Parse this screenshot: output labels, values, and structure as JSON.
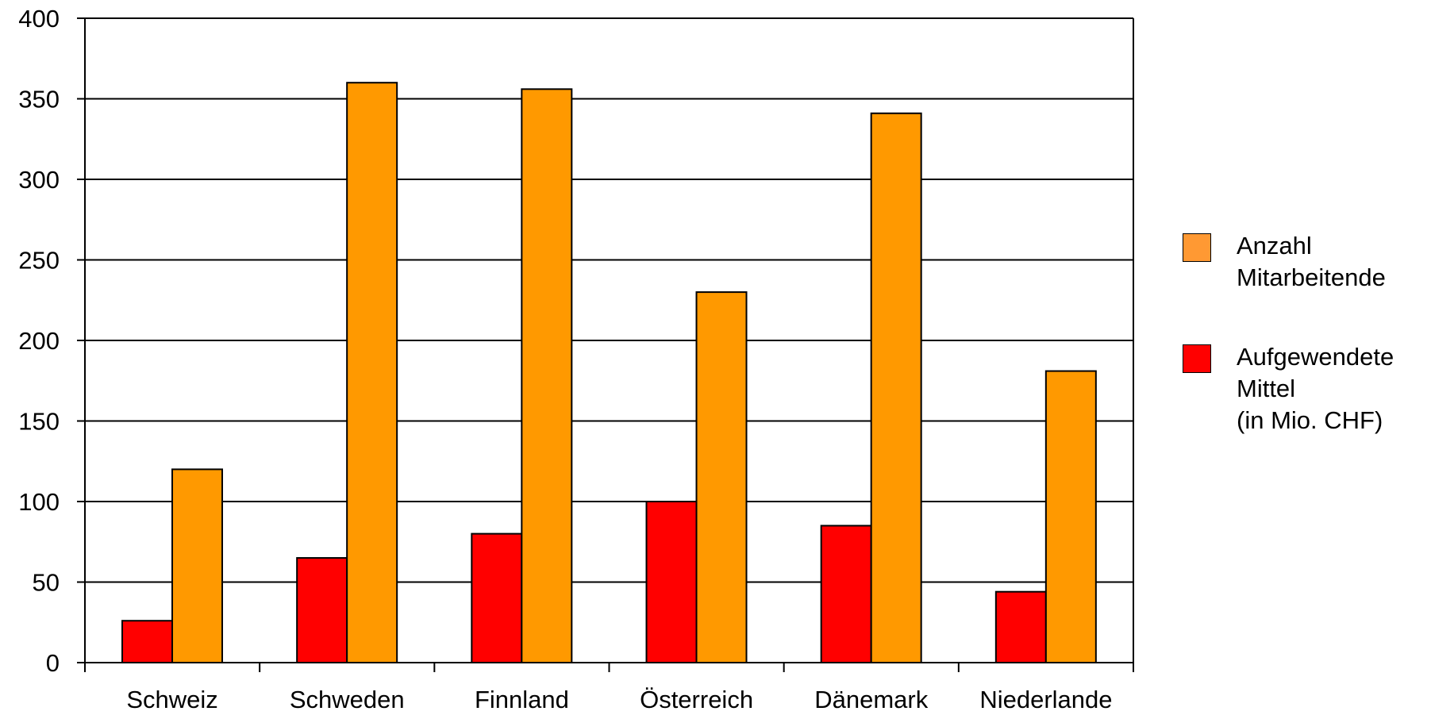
{
  "chart_data": {
    "type": "bar",
    "categories": [
      "Schweiz",
      "Schweden",
      "Finnland",
      "Österreich",
      "Dänemark",
      "Niederlande"
    ],
    "series": [
      {
        "name": "Aufgewendete Mittel (in Mio. CHF)",
        "label": "Aufgewendete\nMittel\n(in Mio. CHF)",
        "color": "#ff0000",
        "values": [
          26,
          65,
          80,
          100,
          85,
          44
        ]
      },
      {
        "name": "Anzahl Mitarbeitende",
        "label": "Anzahl\nMitarbeitende",
        "color": "#ff9900",
        "values": [
          120,
          360,
          356,
          230,
          341,
          181
        ]
      }
    ],
    "ylim": [
      0,
      400
    ],
    "yticks": [
      "0",
      "50",
      "100",
      "150",
      "200",
      "250",
      "300",
      "350",
      "400"
    ],
    "grid": true,
    "legend_position": "right"
  },
  "legend": {
    "items": [
      {
        "label": "Anzahl\nMitarbeitende",
        "color": "#ff9933"
      },
      {
        "label": "Aufgewendete\nMittel\n(in Mio. CHF)",
        "color": "#ff0000"
      }
    ]
  }
}
